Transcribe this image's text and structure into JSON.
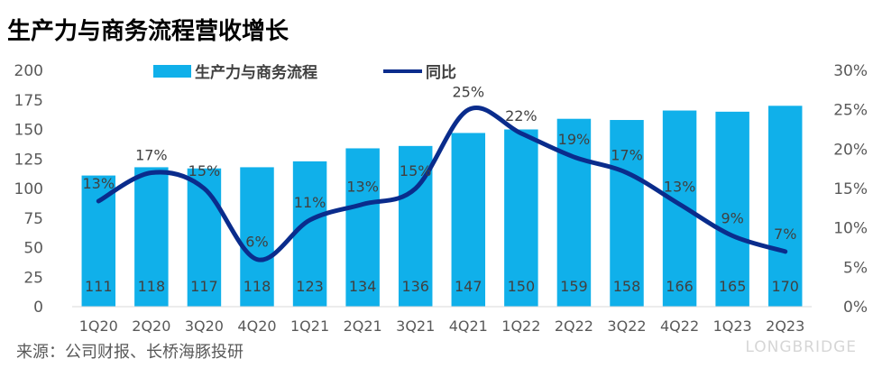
{
  "title": "生产力与商务流程营收增长",
  "source": "来源：公司财报、长桥海豚投研",
  "watermark": "LONGBRIDGE",
  "colors": {
    "bar": "#10b0ea",
    "line": "#0a2c8c",
    "axis": "#595959"
  },
  "chart_data": {
    "type": "bar",
    "title": "生产力与商务流程营收增长",
    "categories": [
      "1Q20",
      "2Q20",
      "3Q20",
      "4Q20",
      "1Q21",
      "2Q21",
      "3Q21",
      "4Q21",
      "1Q22",
      "2Q22",
      "3Q22",
      "4Q22",
      "1Q23",
      "2Q23"
    ],
    "series": [
      {
        "name": "生产力与商务流程",
        "type": "bar",
        "axis": "left",
        "values": [
          111,
          118,
          117,
          118,
          123,
          134,
          136,
          147,
          150,
          159,
          158,
          166,
          165,
          170
        ],
        "labels": [
          "111",
          "118",
          "117",
          "118",
          "123",
          "134",
          "136",
          "147",
          "150",
          "159",
          "158",
          "166",
          "165",
          "170"
        ]
      },
      {
        "name": "同比",
        "type": "line",
        "axis": "right",
        "values": [
          13.4,
          17,
          15,
          6,
          11,
          13,
          15,
          25,
          22,
          19,
          17,
          13,
          9,
          7
        ],
        "labels": [
          "13%",
          "17%",
          "15%",
          "6%",
          "11%",
          "13%",
          "15%",
          "25%",
          "22%",
          "19%",
          "17%",
          "13%",
          "9%",
          "7%"
        ]
      }
    ],
    "ylim_left": [
      0,
      200
    ],
    "yticks_left": [
      "0",
      "25",
      "50",
      "75",
      "100",
      "125",
      "150",
      "175",
      "200"
    ],
    "ylim_right": [
      0,
      30
    ],
    "yticks_right": [
      "0%",
      "5%",
      "10%",
      "15%",
      "20%",
      "25%",
      "30%"
    ],
    "legend_position": "top"
  }
}
